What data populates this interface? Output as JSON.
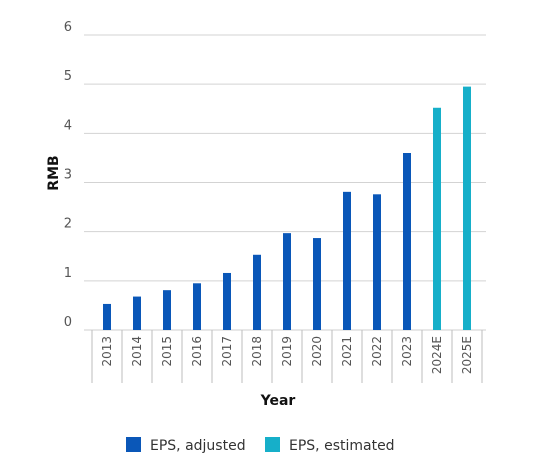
{
  "chart_data": {
    "type": "bar",
    "title": "",
    "xlabel": "Year",
    "ylabel": "RMB",
    "ylim": [
      0,
      6
    ],
    "yticks": [
      0,
      1,
      2,
      3,
      4,
      5,
      6
    ],
    "grid": true,
    "legend_position": "bottom",
    "categories": [
      "2013",
      "2014",
      "2015",
      "2016",
      "2017",
      "2018",
      "2019",
      "2020",
      "2021",
      "2022",
      "2023",
      "2024E",
      "2025E"
    ],
    "series": [
      {
        "name": "EPS, adjusted",
        "color": "#0a57b8",
        "values": [
          0.53,
          0.68,
          0.81,
          0.95,
          1.16,
          1.53,
          1.97,
          1.87,
          2.81,
          2.76,
          3.6,
          null,
          null
        ]
      },
      {
        "name": "EPS, estimated",
        "color": "#16afc9",
        "values": [
          null,
          null,
          null,
          null,
          null,
          null,
          null,
          null,
          null,
          null,
          null,
          4.52,
          4.95
        ]
      }
    ]
  }
}
